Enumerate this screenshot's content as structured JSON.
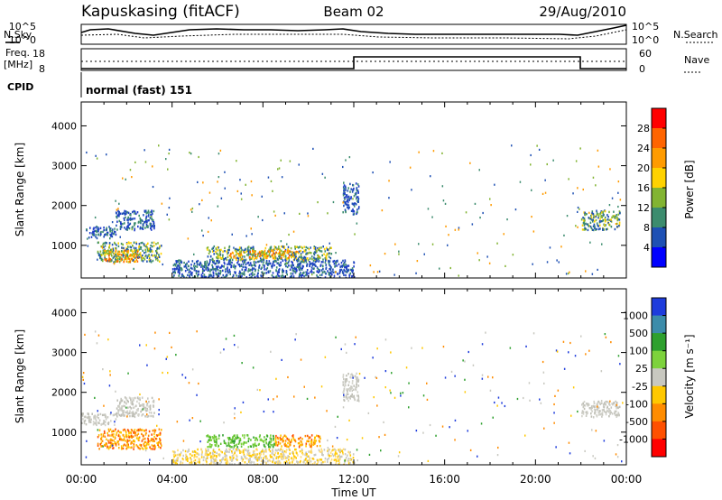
{
  "header": {
    "station": "Kapuskasing (fitACF)",
    "beam": "Beam 02",
    "date": "29/Aug/2010"
  },
  "status_panels": {
    "noise_label_left": "N.Sky",
    "noise_label_right": "N.Search",
    "noise_ticks": [
      "10^5",
      "10^0"
    ],
    "freq_label_line1": "Freq.",
    "freq_label_line2": "[MHz]",
    "freq_ticks": [
      "18",
      "8"
    ],
    "nave_label": "Nave",
    "nave_ticks": [
      "60",
      "0"
    ],
    "cpid_label": "CPID",
    "cpid_value": "normal (fast) 151"
  },
  "chart_data": [
    {
      "type": "heatmap",
      "name": "power-panel",
      "title": "",
      "ylabel": "Slant Range [km]",
      "xlabel": "",
      "ylim": [
        180,
        4600
      ],
      "yticks": [
        1000,
        2000,
        3000,
        4000
      ],
      "xticks": [
        "00:00",
        "04:00",
        "08:00",
        "12:00",
        "16:00",
        "20:00",
        "00:00"
      ],
      "colorbar": {
        "label": "Power [dB]",
        "ticks": [
          "28",
          "24",
          "20",
          "16",
          "12",
          "8",
          "4"
        ],
        "colors": [
          "#ff0000",
          "#ff6400",
          "#ff9b00",
          "#ffd200",
          "#82b432",
          "#3c8c6e",
          "#1e50b4",
          "#0000ff"
        ]
      },
      "regions": [
        {
          "t": [
            0.2,
            1.5
          ],
          "r": [
            1200,
            1500
          ],
          "level": "low"
        },
        {
          "t": [
            1.5,
            3.2
          ],
          "r": [
            1400,
            1900
          ],
          "level": "low"
        },
        {
          "t": [
            0.7,
            3.5
          ],
          "r": [
            600,
            1100
          ],
          "level": "mid"
        },
        {
          "t": [
            1.0,
            2.5
          ],
          "r": [
            600,
            900
          ],
          "level": "high"
        },
        {
          "t": [
            5.5,
            11.0
          ],
          "r": [
            650,
            1000
          ],
          "level": "mid"
        },
        {
          "t": [
            6.5,
            9.5
          ],
          "r": [
            700,
            900
          ],
          "level": "high"
        },
        {
          "t": [
            4.0,
            12.0
          ],
          "r": [
            200,
            650
          ],
          "level": "low"
        },
        {
          "t": [
            11.5,
            12.2
          ],
          "r": [
            1800,
            2600
          ],
          "level": "low"
        },
        {
          "t": [
            22.0,
            23.7
          ],
          "r": [
            1400,
            1900
          ],
          "level": "mid"
        }
      ]
    },
    {
      "type": "heatmap",
      "name": "velocity-panel",
      "title": "",
      "ylabel": "Slant Range [km]",
      "xlabel": "Time UT",
      "ylim": [
        180,
        4600
      ],
      "yticks": [
        1000,
        2000,
        3000,
        4000
      ],
      "xticks": [
        "00:00",
        "04:00",
        "08:00",
        "12:00",
        "16:00",
        "20:00",
        "00:00"
      ],
      "colorbar": {
        "label": "Velocity [m s⁻¹]",
        "ticks": [
          "1000",
          "500",
          "100",
          "25",
          "-25",
          "-100",
          "-500",
          "-1000"
        ],
        "colors": [
          "#1e3cdc",
          "#3c8caa",
          "#2ea02e",
          "#7dd23c",
          "#c8c8c0",
          "#ffc800",
          "#ff8c00",
          "#ff5000",
          "#ff0000"
        ]
      },
      "regions": [
        {
          "t": [
            0.0,
            1.5
          ],
          "r": [
            1200,
            1500
          ],
          "level": "ground"
        },
        {
          "t": [
            1.5,
            3.2
          ],
          "r": [
            1400,
            1900
          ],
          "level": "ground"
        },
        {
          "t": [
            0.7,
            3.5
          ],
          "r": [
            600,
            1100
          ],
          "level": "neg"
        },
        {
          "t": [
            5.5,
            8.5
          ],
          "r": [
            650,
            950
          ],
          "level": "pos"
        },
        {
          "t": [
            8.5,
            10.5
          ],
          "r": [
            650,
            950
          ],
          "level": "neg"
        },
        {
          "t": [
            4.0,
            12.0
          ],
          "r": [
            200,
            600
          ],
          "level": "neg-light"
        },
        {
          "t": [
            11.5,
            12.2
          ],
          "r": [
            1800,
            2500
          ],
          "level": "ground"
        },
        {
          "t": [
            22.0,
            23.7
          ],
          "r": [
            1400,
            1800
          ],
          "level": "ground"
        }
      ]
    }
  ]
}
